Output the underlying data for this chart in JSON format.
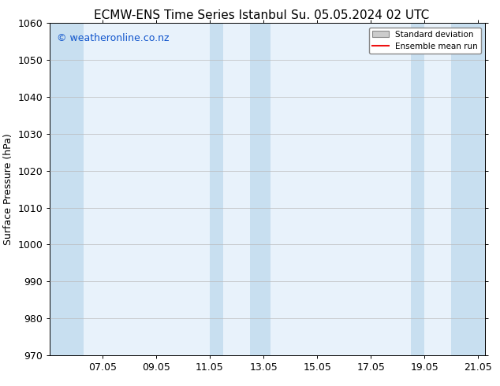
{
  "title_left": "ECMW-ENS Time Series Istanbul",
  "title_right": "Su. 05.05.2024 02 UTC",
  "ylabel": "Surface Pressure (hPa)",
  "ylim": [
    970,
    1060
  ],
  "yticks": [
    970,
    980,
    990,
    1000,
    1010,
    1020,
    1030,
    1040,
    1050,
    1060
  ],
  "xlim_start": 5.05,
  "xlim_end": 21.25,
  "xtick_labels": [
    "07.05",
    "09.05",
    "11.05",
    "13.05",
    "15.05",
    "17.05",
    "19.05",
    "21.05"
  ],
  "xtick_positions": [
    7.0,
    9.0,
    11.0,
    13.0,
    15.0,
    17.0,
    19.0,
    21.0
  ],
  "watermark": "© weatheronline.co.nz",
  "watermark_color": "#1155cc",
  "bg_color": "#ffffff",
  "plot_bg_color": "#e8f2fb",
  "shade_color": "#c8dff0",
  "legend_std_label": "Standard deviation",
  "legend_mean_label": "Ensemble mean run",
  "legend_mean_color": "#ee1111",
  "shaded_bands": [
    {
      "x_start": 5.05,
      "x_end": 6.3
    },
    {
      "x_start": 11.0,
      "x_end": 11.5
    },
    {
      "x_start": 12.5,
      "x_end": 13.25
    },
    {
      "x_start": 18.5,
      "x_end": 19.0
    },
    {
      "x_start": 20.0,
      "x_end": 21.25
    }
  ],
  "font_size_title": 11,
  "font_size_axis": 9,
  "font_size_watermark": 9,
  "title_font": "DejaVu Sans"
}
